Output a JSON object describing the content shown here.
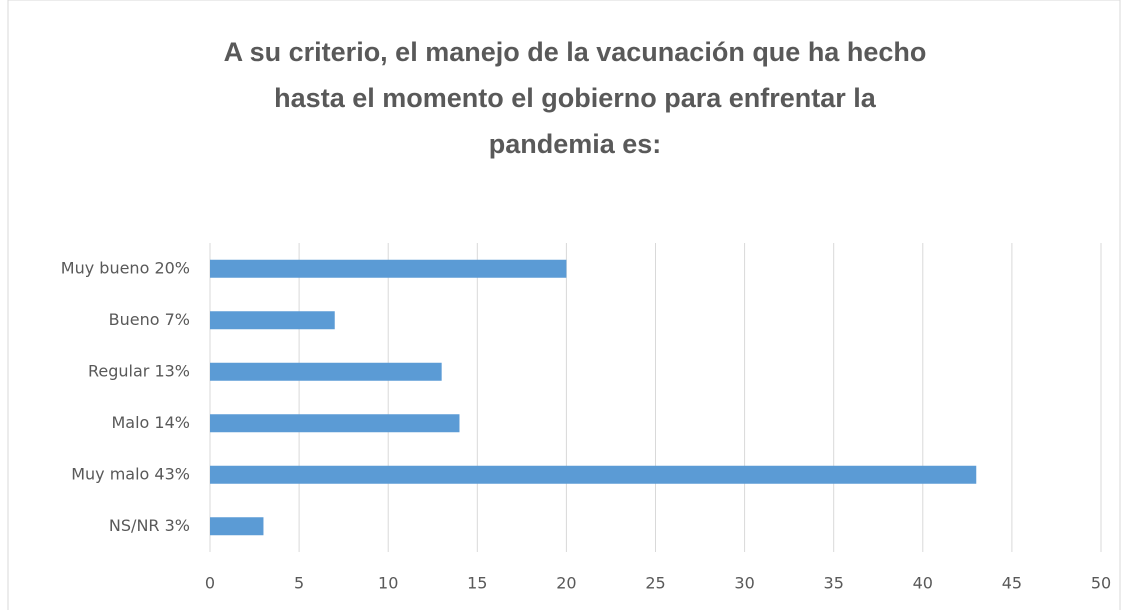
{
  "chart_data": {
    "type": "bar",
    "orientation": "horizontal",
    "title": [
      "A su criterio, el manejo de la vacunación que ha hecho",
      "hasta el momento el gobierno para enfrentar la",
      "pandemia es:"
    ],
    "categories": [
      "Muy bueno  20%",
      "Bueno  7%",
      "Regular  13%",
      "Malo  14%",
      "Muy malo  43%",
      "NS/NR  3%"
    ],
    "values": [
      20,
      7,
      13,
      14,
      43,
      3
    ],
    "color": "#5b9bd5",
    "xlim": [
      0,
      50
    ],
    "xticks": [
      0,
      5,
      10,
      15,
      20,
      25,
      30,
      35,
      40,
      45,
      50
    ],
    "grid": true
  }
}
